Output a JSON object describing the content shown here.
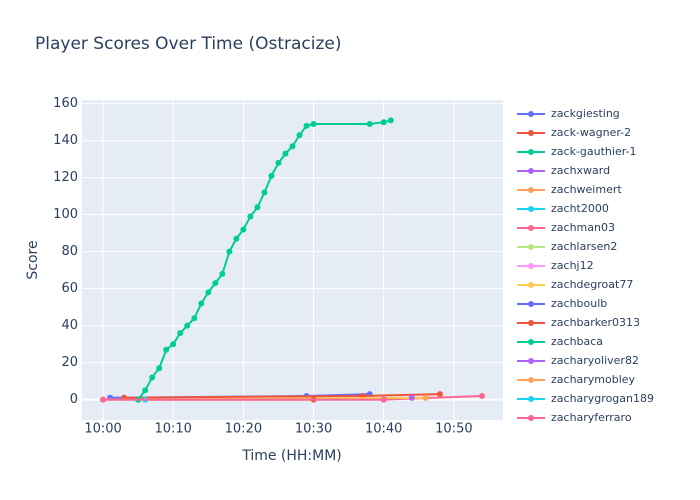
{
  "chart_data": {
    "type": "line",
    "title": "Player Scores Over Time (Ostracize)",
    "x_label": "Time (HH:MM)",
    "y_label": "Score",
    "xlim": [
      "09:57",
      "10:57"
    ],
    "xticks": [
      "10:00",
      "10:10",
      "10:20",
      "10:30",
      "10:40",
      "10:50"
    ],
    "ylim": [
      -11,
      162
    ],
    "yticks": [
      0,
      20,
      40,
      60,
      80,
      100,
      120,
      140,
      160
    ],
    "grid": true,
    "legend": "right",
    "series": [
      {
        "name": "zackgiesting",
        "color": "#636efa",
        "x": [
          "10:01",
          "10:29",
          "10:38"
        ],
        "values": [
          1,
          2,
          3
        ]
      },
      {
        "name": "zack-wagner-2",
        "color": "#EF553B",
        "x": [
          "10:03",
          "10:37",
          "10:48"
        ],
        "values": [
          1,
          2,
          3
        ]
      },
      {
        "name": "zack-gauthier-1",
        "color": "#00cc96",
        "x": [
          "10:05",
          "10:06",
          "10:07",
          "10:08",
          "10:09",
          "10:10",
          "10:11",
          "10:12",
          "10:13",
          "10:14",
          "10:15",
          "10:16",
          "10:17",
          "10:18",
          "10:19",
          "10:20",
          "10:21",
          "10:22",
          "10:23",
          "10:24",
          "10:25",
          "10:26",
          "10:27",
          "10:28",
          "10:29",
          "10:30",
          "10:38",
          "10:40",
          "10:41"
        ],
        "values": [
          0,
          5,
          12,
          17,
          27,
          30,
          36,
          40,
          44,
          52,
          58,
          63,
          68,
          80,
          87,
          92,
          99,
          104,
          112,
          121,
          128,
          133,
          137,
          143,
          148,
          149,
          149,
          150,
          151
        ]
      },
      {
        "name": "zachxward",
        "color": "#ab63fa",
        "x": [
          "10:44"
        ],
        "values": [
          1
        ]
      },
      {
        "name": "zachweimert",
        "color": "#FFA15A",
        "x": [
          "10:46"
        ],
        "values": [
          1
        ]
      },
      {
        "name": "zacht2000",
        "color": "#19d3f3",
        "x": [
          "10:05"
        ],
        "values": [
          0
        ]
      },
      {
        "name": "zachman03",
        "color": "#FF6692",
        "x": [
          "10:00",
          "10:40",
          "10:54"
        ],
        "values": [
          0,
          0,
          2
        ]
      },
      {
        "name": "zachlarsen2",
        "color": "#B6E880",
        "x": [
          "10:00"
        ],
        "values": [
          0
        ]
      },
      {
        "name": "zachj12",
        "color": "#FF97FF",
        "x": [
          "10:00"
        ],
        "values": [
          0
        ]
      },
      {
        "name": "zachdegroat77",
        "color": "#FECB52",
        "x": [
          "10:00",
          "10:46"
        ],
        "values": [
          0,
          1
        ]
      },
      {
        "name": "zachboulb",
        "color": "#636efa",
        "x": [
          "10:05"
        ],
        "values": [
          0
        ]
      },
      {
        "name": "zachbarker0313",
        "color": "#EF553B",
        "x": [
          "10:05",
          "10:30"
        ],
        "values": [
          0,
          0
        ]
      },
      {
        "name": "zachbaca",
        "color": "#00cc96",
        "x": [
          "10:05"
        ],
        "values": [
          0
        ]
      },
      {
        "name": "zacharyoliver82",
        "color": "#ab63fa",
        "x": [
          "10:44"
        ],
        "values": [
          1
        ]
      },
      {
        "name": "zacharymobley",
        "color": "#FFA15A",
        "x": [
          "10:46"
        ],
        "values": [
          1
        ]
      },
      {
        "name": "zacharygrogan189",
        "color": "#19d3f3",
        "x": [
          "10:06"
        ],
        "values": [
          0
        ]
      },
      {
        "name": "zacharyferraro",
        "color": "#FF6692",
        "x": [
          "10:00",
          "10:40"
        ],
        "values": [
          0,
          0
        ]
      }
    ]
  }
}
